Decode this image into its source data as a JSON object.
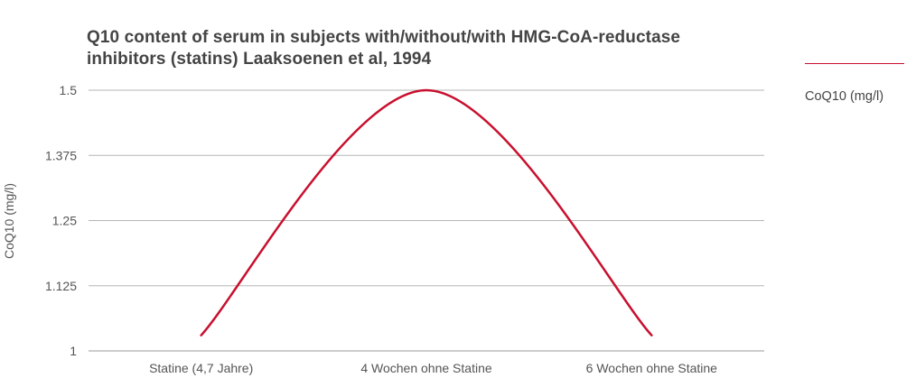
{
  "chart_data": {
    "type": "line",
    "title": "Q10 content of serum in subjects with/without/with HMG-CoA-reductase inhibitors (statins) Laaksoenen et al, 1994",
    "ylabel": "CoQ10 (mg/l)",
    "xlabel": "",
    "categories": [
      "Statine (4,7 Jahre)",
      "4 Wochen ohne Statine",
      "6 Wochen ohne Statine"
    ],
    "series": [
      {
        "name": "CoQ10 (mg/l)",
        "values": [
          1.03,
          1.5,
          1.03
        ],
        "color": "#c8102e"
      }
    ],
    "ylim": [
      1,
      1.5
    ],
    "yticks": [
      "1",
      "1.125",
      "1.25",
      "1.375",
      "1.5"
    ],
    "grid": true,
    "legend": "right"
  }
}
